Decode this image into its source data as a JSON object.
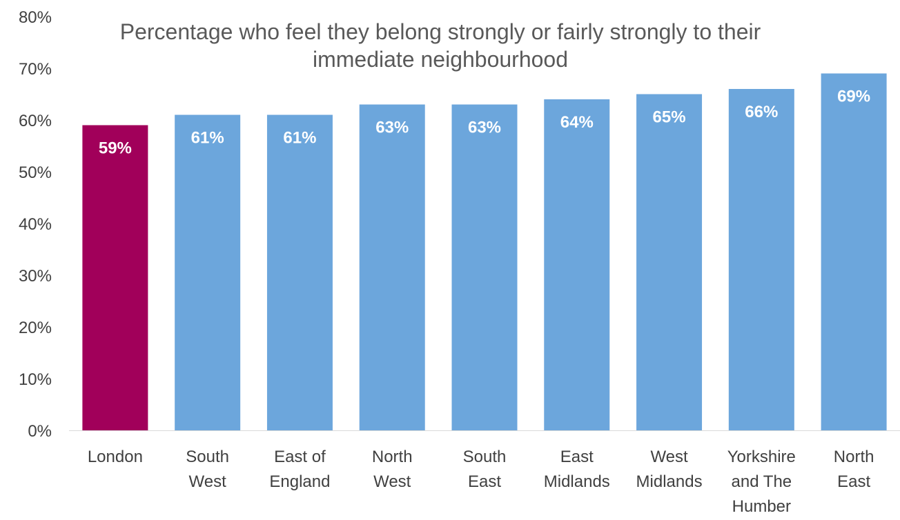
{
  "chart_data": {
    "type": "bar",
    "title_lines": [
      "Percentage who feel they belong strongly or fairly strongly to their",
      "immediate neighbourhood"
    ],
    "categories": [
      [
        "London"
      ],
      [
        "South",
        "West"
      ],
      [
        "East of",
        "England"
      ],
      [
        "North",
        "West"
      ],
      [
        "South",
        "East"
      ],
      [
        "East",
        "Midlands"
      ],
      [
        "West",
        "Midlands"
      ],
      [
        "Yorkshire",
        "and The",
        "Humber"
      ],
      [
        "North",
        "East"
      ]
    ],
    "values": [
      59,
      61,
      61,
      63,
      63,
      64,
      65,
      66,
      69
    ],
    "data_labels": [
      "59%",
      "61%",
      "61%",
      "63%",
      "63%",
      "64%",
      "65%",
      "66%",
      "69%"
    ],
    "highlight_index": 0,
    "colors": {
      "highlight": "#A1005A",
      "default": "#6CA6DC",
      "data_label": "#FFFFFF",
      "axis_text": "#404040",
      "title": "#595959",
      "axis_line": "#D9D9D9"
    },
    "y_ticks": [
      "0%",
      "10%",
      "20%",
      "30%",
      "40%",
      "50%",
      "60%",
      "70%",
      "80%"
    ],
    "ylim": [
      0,
      80
    ],
    "grid": false,
    "legend": "none"
  }
}
